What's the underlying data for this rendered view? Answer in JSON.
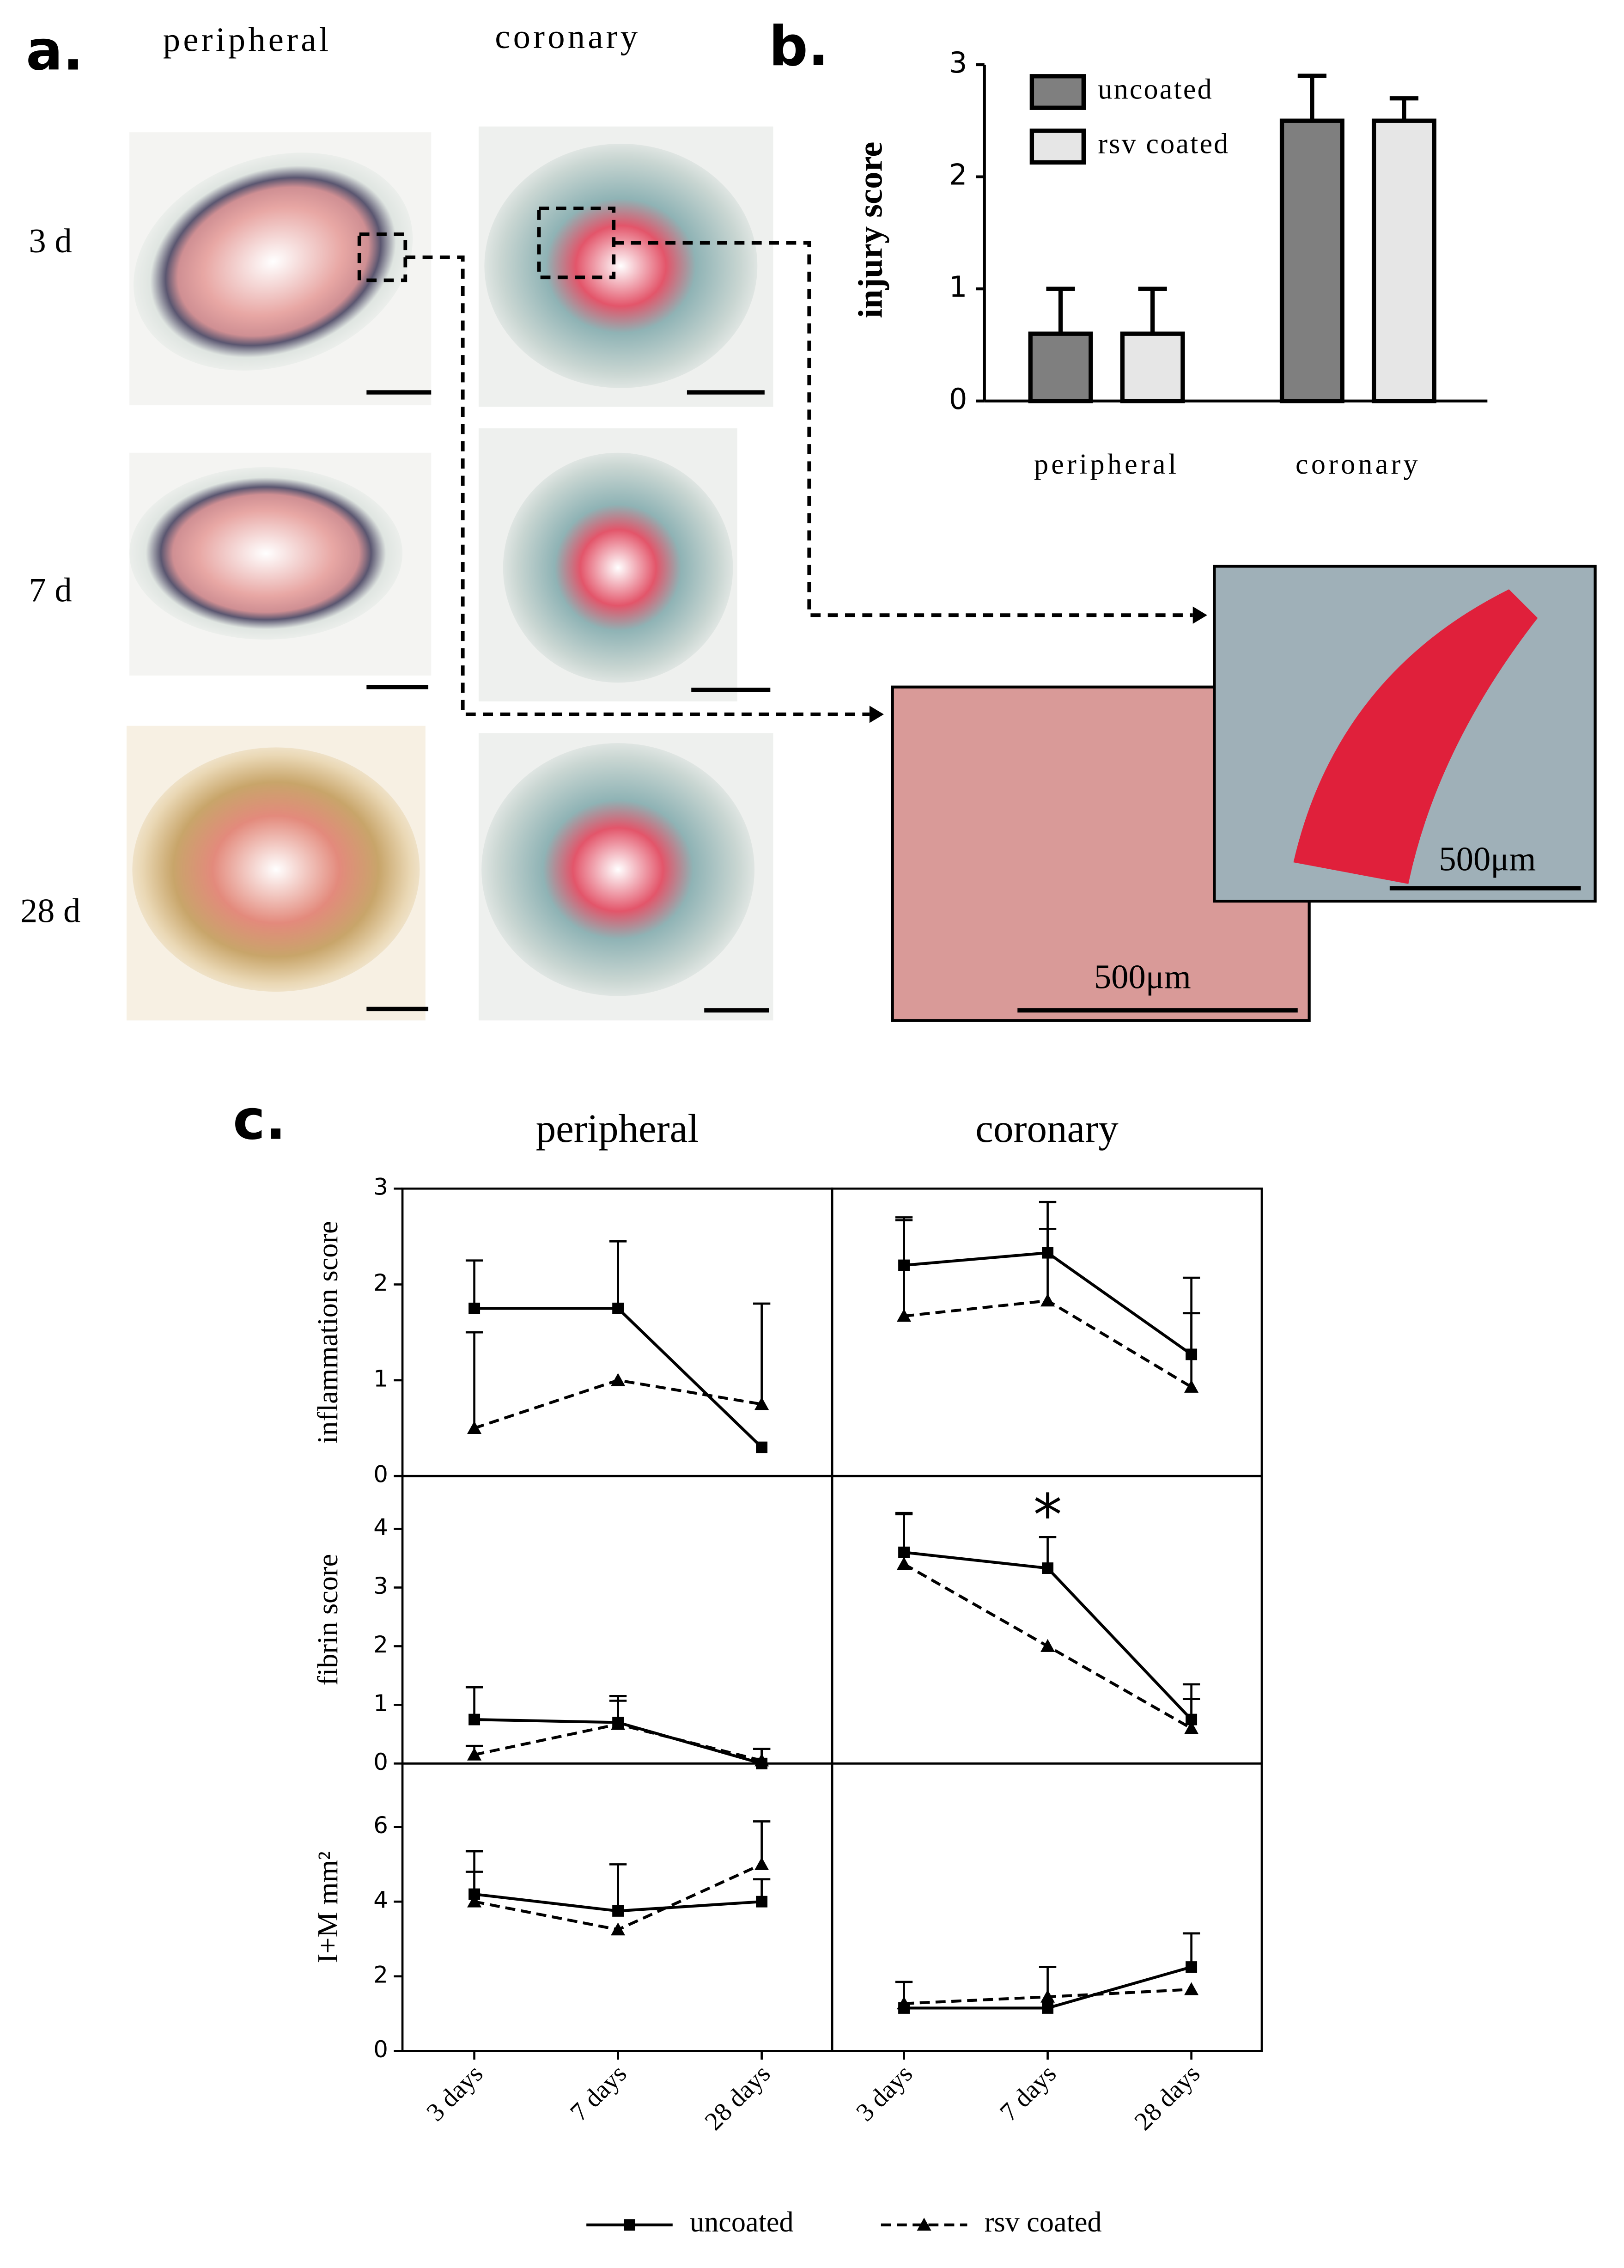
{
  "figure": {
    "panel_a": "a.",
    "panel_b": "b.",
    "panel_c": "c.",
    "columns": [
      "peripheral",
      "coronary"
    ],
    "rows": [
      "3 d",
      "7 d",
      "28 d"
    ],
    "scale_labels": [
      "500μm",
      "500μm"
    ]
  },
  "chart_data": [
    {
      "type": "bar",
      "ylabel": "injury score",
      "categories": [
        "peripheral",
        "coronary"
      ],
      "ylim": [
        0,
        3
      ],
      "yticks": [
        0,
        1,
        2,
        3
      ],
      "legend": "upper left",
      "series": [
        {
          "name": "uncoated",
          "color": "#7f7f7f",
          "values": [
            0.6,
            2.5
          ],
          "errors": [
            0.4,
            0.4
          ]
        },
        {
          "name": "rsv coated",
          "color": "#e6e6e6",
          "values": [
            0.6,
            2.5
          ],
          "errors": [
            0.4,
            0.2
          ]
        }
      ]
    },
    {
      "type": "line",
      "columns": [
        "peripheral",
        "coronary"
      ],
      "categories": [
        "3 days",
        "7 days",
        "28 days"
      ],
      "series": [
        {
          "name": "uncoated",
          "color": "#000000",
          "dash": "solid",
          "marker": "square"
        },
        {
          "name": "rsv coated",
          "color": "#000000",
          "dash": "dashed",
          "marker": "triangle"
        }
      ],
      "rows": [
        {
          "ylabel": "inflammation score",
          "ylim": [
            0,
            3
          ],
          "yticks": [
            0,
            1,
            2,
            3
          ],
          "panels": [
            {
              "values": [
                [
                  1.75,
                  1.75,
                  0.3
                ],
                [
                  0.5,
                  1.0,
                  0.75
                ]
              ],
              "errors": [
                [
                  0.5,
                  0.7,
                  null
                ],
                [
                  1.0,
                  null,
                  1.05
                ]
              ]
            },
            {
              "values": [
                [
                  2.2,
                  2.33,
                  1.27
                ],
                [
                  1.67,
                  1.83,
                  0.93
                ]
              ],
              "errors": [
                [
                  0.5,
                  0.53,
                  0.8
                ],
                [
                  1.0,
                  0.75,
                  0.77
                ]
              ]
            }
          ]
        },
        {
          "ylabel": "fibrin score",
          "ylim": [
            0,
            4.9
          ],
          "yticks": [
            0,
            1,
            2,
            3,
            4
          ],
          "panels": [
            {
              "values": [
                [
                  0.75,
                  0.7,
                  0.0
                ],
                [
                  0.15,
                  0.67,
                  0.05
                ]
              ],
              "errors": [
                [
                  0.55,
                  0.45,
                  0.25
                ],
                [
                  0.15,
                  0.4,
                  0.2
                ]
              ]
            },
            {
              "values": [
                [
                  3.6,
                  3.33,
                  0.75
                ],
                [
                  3.4,
                  2.0,
                  0.6
                ]
              ],
              "errors": [
                [
                  0.67,
                  0.53,
                  0.6
                ],
                [
                  0.85,
                  null,
                  0.5
                ]
              ],
              "annotation": "*"
            }
          ]
        },
        {
          "ylabel": "I+M mm²",
          "ylim": [
            0,
            7.7
          ],
          "yticks": [
            0,
            2,
            4,
            6
          ],
          "panels": [
            {
              "values": [
                [
                  4.2,
                  3.75,
                  4.0
                ],
                [
                  4.0,
                  3.25,
                  5.0
                ]
              ],
              "errors": [
                [
                  1.15,
                  1.25,
                  0.6
                ],
                [
                  0.8,
                  null,
                  1.15
                ]
              ]
            },
            {
              "values": [
                [
                  1.15,
                  1.15,
                  2.25
                ],
                [
                  1.27,
                  1.45,
                  1.65
                ]
              ],
              "errors": [
                [
                  0.7,
                  1.1,
                  0.9
                ],
                [
                  null,
                  null,
                  null
                ]
              ]
            }
          ]
        }
      ]
    }
  ]
}
